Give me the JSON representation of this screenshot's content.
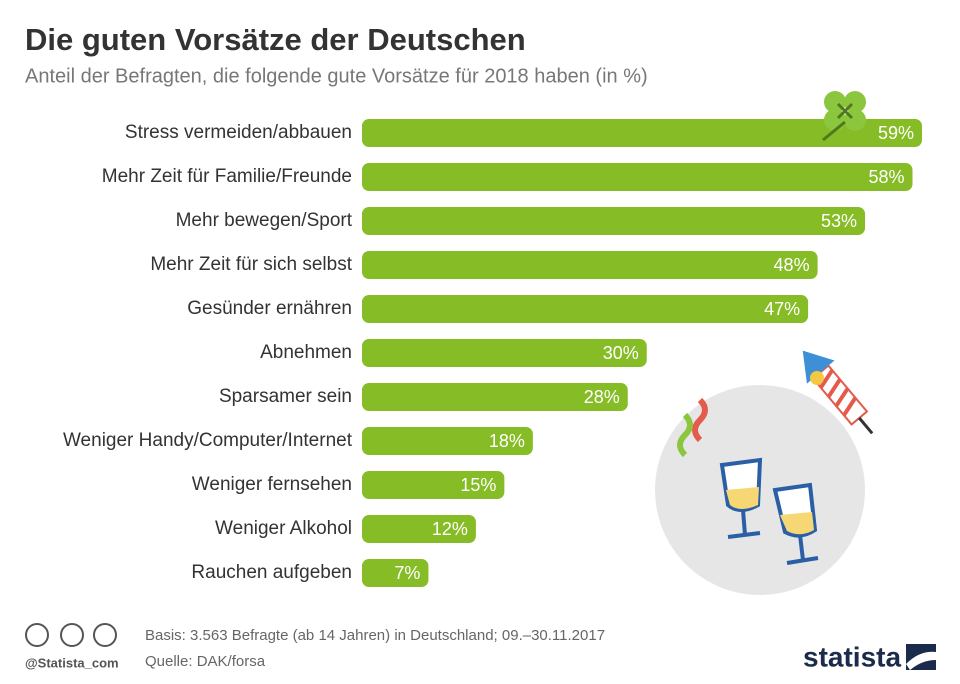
{
  "chart_data": {
    "type": "bar",
    "orientation": "horizontal",
    "title": "Die guten Vorsätze der Deutschen",
    "subtitle": "Anteil der Befragten, die folgende gute Vorsätze für 2018 haben (in %)",
    "categories": [
      "Stress vermeiden/abbauen",
      "Mehr Zeit für Familie/Freunde",
      "Mehr bewegen/Sport",
      "Mehr Zeit für sich selbst",
      "Gesünder ernähren",
      "Abnehmen",
      "Sparsamer sein",
      "Weniger Handy/Computer/Internet",
      "Weniger fernsehen",
      "Weniger Alkohol",
      "Rauchen aufgeben"
    ],
    "values": [
      59,
      58,
      53,
      48,
      47,
      30,
      28,
      18,
      15,
      12,
      7
    ],
    "value_labels": [
      "59%",
      "58%",
      "53%",
      "48%",
      "47%",
      "30%",
      "28%",
      "18%",
      "15%",
      "12%",
      "7%"
    ],
    "color": "#86bc25"
  },
  "footer": {
    "basis": "Basis: 3.563 Befragte (ab 14 Jahren) in Deutschland; 09.–30.11.2017",
    "source": "Quelle: DAK/forsa",
    "handle": "@Statista_com",
    "brand": "statista"
  }
}
